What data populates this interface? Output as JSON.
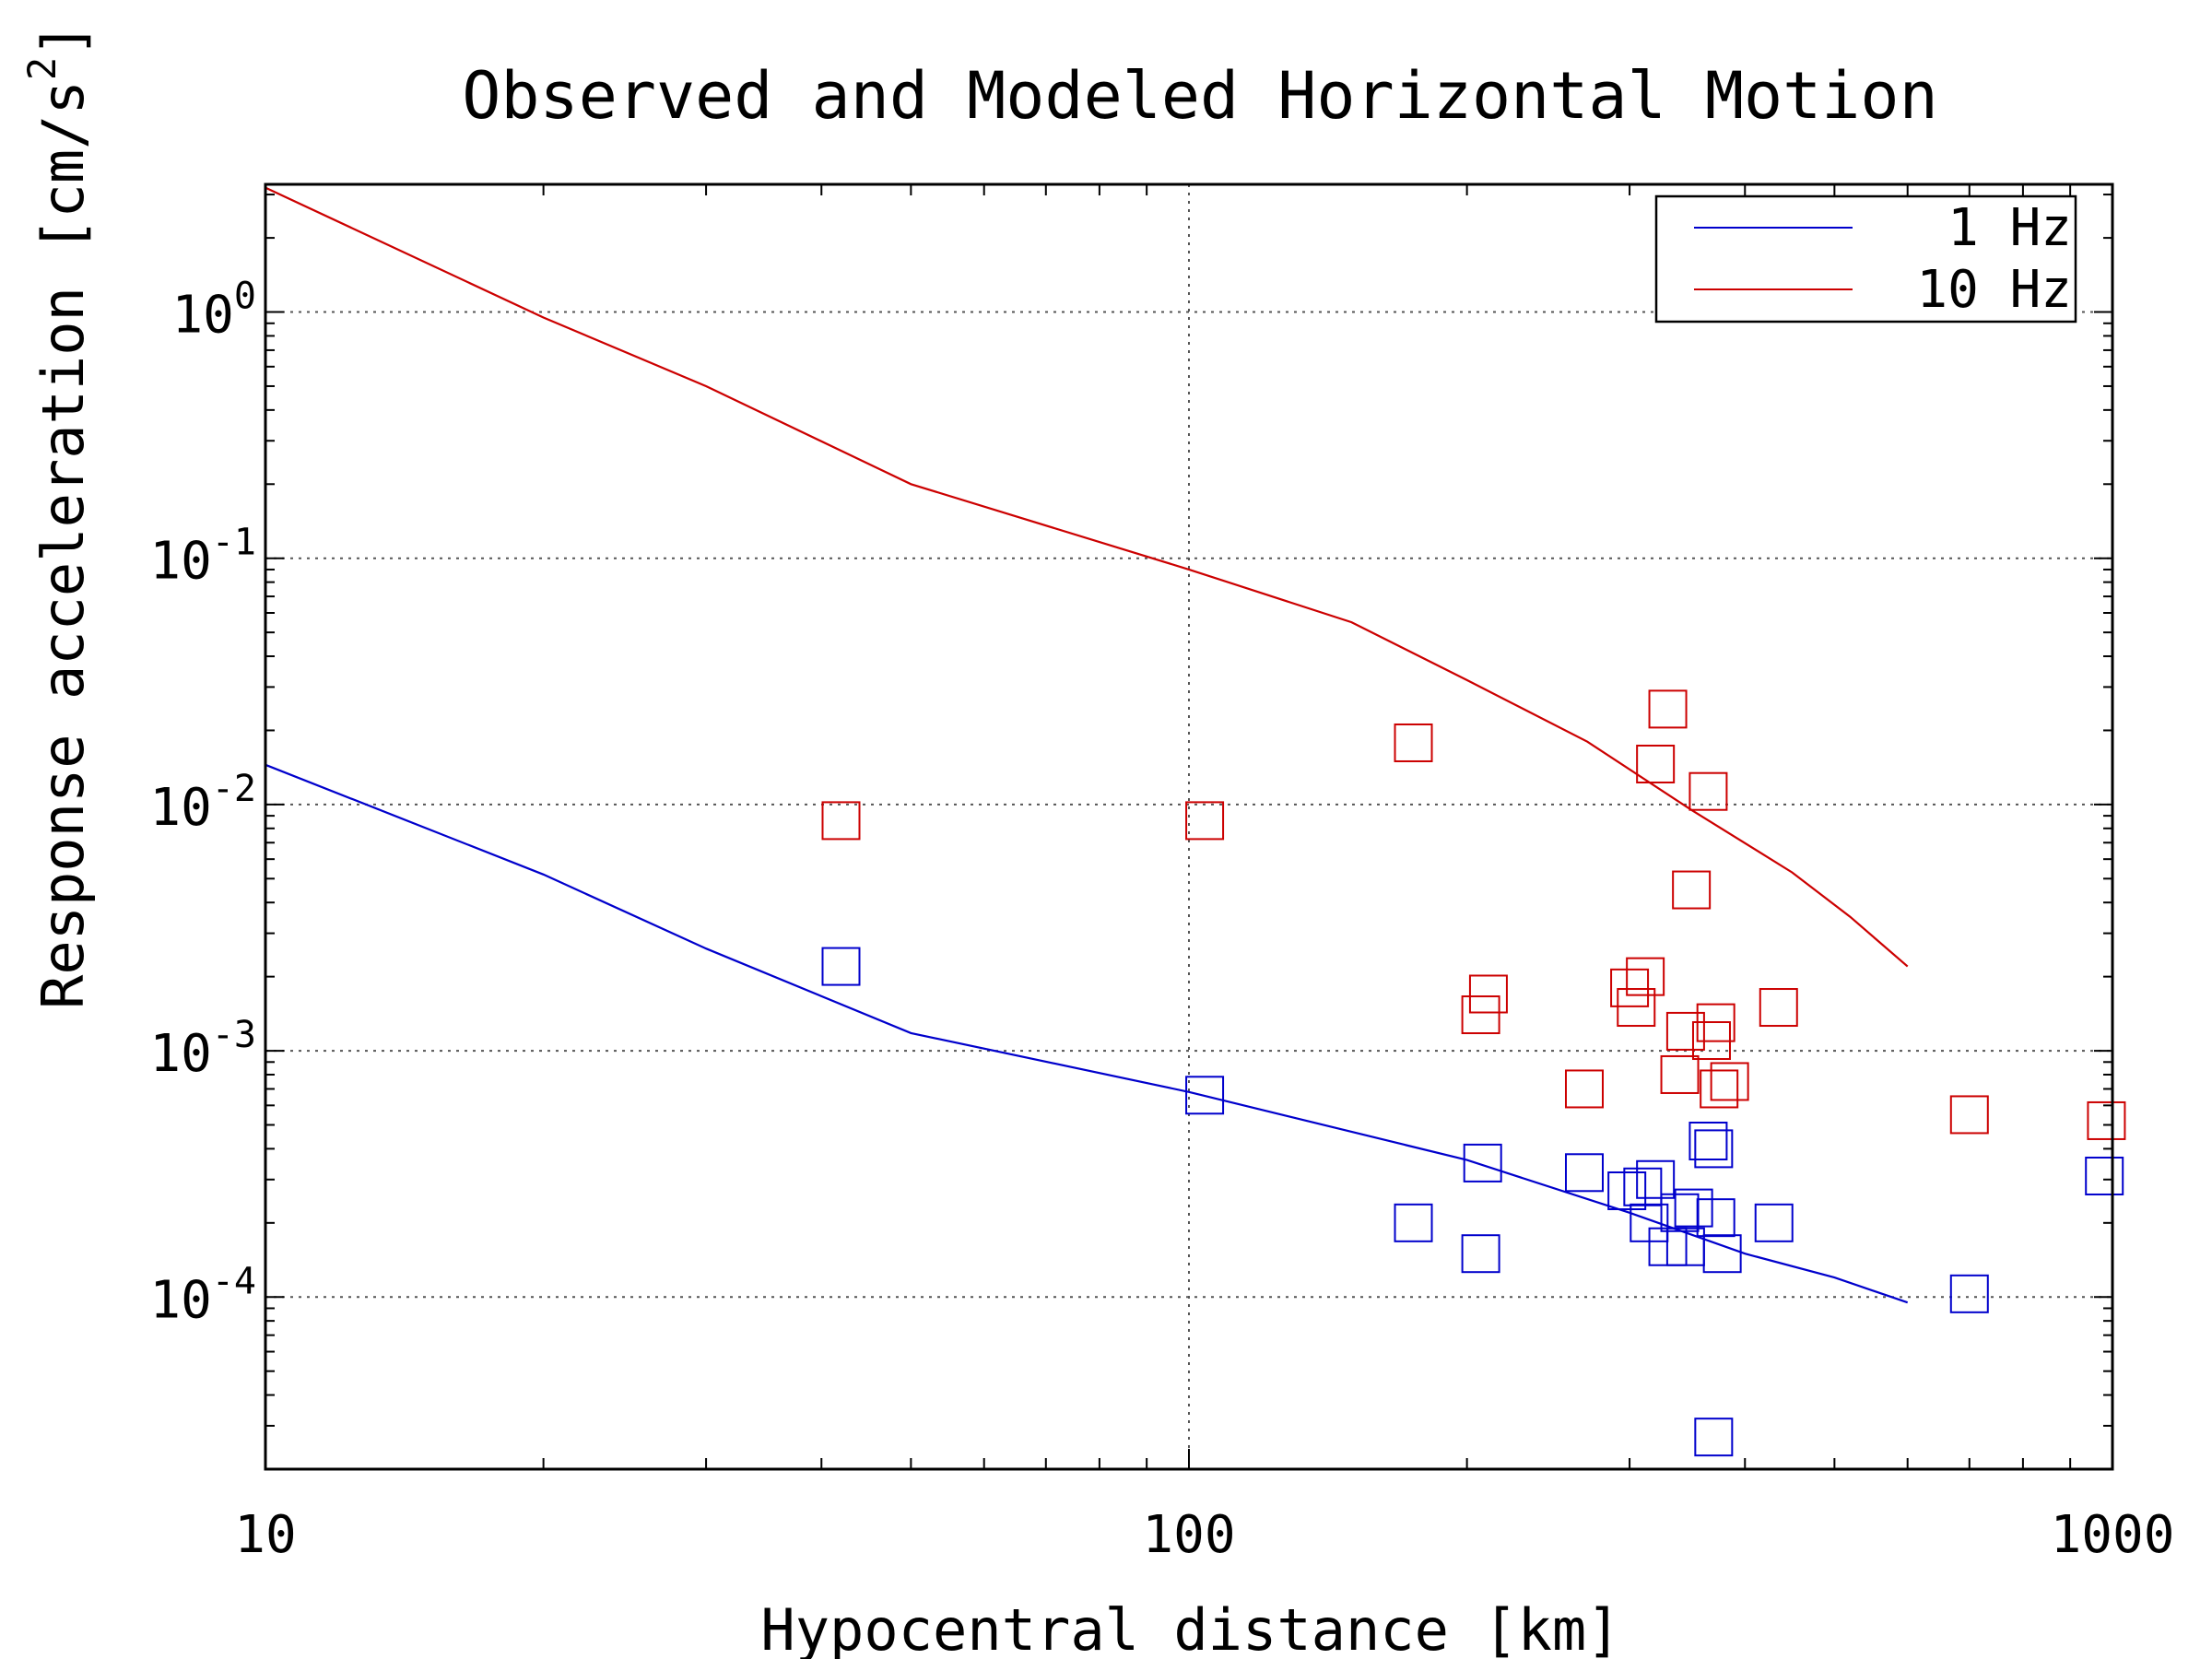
{
  "chart_data": {
    "type": "scatter",
    "title": "Observed and Modeled Horizontal Motion",
    "xlabel": "Hypocentral distance [km]",
    "ylabel_main": "Response acceleration [cm/s",
    "ylabel_sup": "2",
    "ylabel_tail": "]",
    "x_scale": "log",
    "y_scale": "log",
    "xlim": [
      10,
      1000
    ],
    "ylim": [
      2e-05,
      3.3
    ],
    "grid": true,
    "legend_position": "top-right",
    "x_ticks": [
      {
        "value": 10,
        "label": "10"
      },
      {
        "value": 100,
        "label": "100"
      },
      {
        "value": 1000,
        "label": "1000"
      }
    ],
    "y_ticks": [
      {
        "value": 1,
        "base": "10",
        "exp": "0"
      },
      {
        "value": 0.1,
        "base": "10",
        "exp": "-1"
      },
      {
        "value": 0.01,
        "base": "10",
        "exp": "-2"
      },
      {
        "value": 0.001,
        "base": "10",
        "exp": "-3"
      },
      {
        "value": 0.0001,
        "base": "10",
        "exp": "-4"
      }
    ],
    "series": [
      {
        "name": "1 Hz",
        "color": "#0000cc",
        "model": [
          [
            10,
            0.0145
          ],
          [
            20,
            0.0052
          ],
          [
            30,
            0.0026
          ],
          [
            50,
            0.00118
          ],
          [
            100,
            0.00068
          ],
          [
            200,
            0.00036
          ],
          [
            300,
            0.00022
          ],
          [
            400,
            0.00015
          ],
          [
            500,
            0.00012
          ],
          [
            600,
            9.5e-05
          ]
        ],
        "observed": [
          [
            42,
            0.0022
          ],
          [
            104,
            0.00066
          ],
          [
            175,
            0.0002
          ],
          [
            208,
            0.00035
          ],
          [
            207,
            0.00015
          ],
          [
            268,
            0.00032
          ],
          [
            298,
            0.00027
          ],
          [
            310,
            0.00028
          ],
          [
            315,
            0.0002
          ],
          [
            320,
            0.0003
          ],
          [
            330,
            0.00016
          ],
          [
            340,
            0.00022
          ],
          [
            345,
            0.00016
          ],
          [
            352,
            0.00023
          ],
          [
            365,
            0.00043
          ],
          [
            370,
            0.0004
          ],
          [
            372,
            0.00021
          ],
          [
            378,
            0.00015
          ],
          [
            430,
            0.0002
          ],
          [
            370,
            2.7e-05
          ],
          [
            700,
            0.000103
          ],
          [
            980,
            0.00031
          ]
        ]
      },
      {
        "name": "10 Hz",
        "color": "#cc0000",
        "model": [
          [
            10,
            3.2
          ],
          [
            20,
            0.95
          ],
          [
            30,
            0.5
          ],
          [
            50,
            0.2
          ],
          [
            100,
            0.09
          ],
          [
            150,
            0.055
          ],
          [
            200,
            0.032
          ],
          [
            270,
            0.018
          ],
          [
            350,
            0.0095
          ],
          [
            450,
            0.0053
          ],
          [
            520,
            0.0035
          ],
          [
            600,
            0.0022
          ]
        ],
        "observed": [
          [
            42,
            0.0086
          ],
          [
            104,
            0.0086
          ],
          [
            175,
            0.0178
          ],
          [
            207,
            0.0014
          ],
          [
            211,
            0.0017
          ],
          [
            268,
            0.0007
          ],
          [
            300,
            0.0018
          ],
          [
            305,
            0.0015
          ],
          [
            312,
            0.002
          ],
          [
            320,
            0.0146
          ],
          [
            330,
            0.0244
          ],
          [
            340,
            0.0008
          ],
          [
            345,
            0.0012
          ],
          [
            350,
            0.0045
          ],
          [
            365,
            0.0113
          ],
          [
            368,
            0.0011
          ],
          [
            372,
            0.0013
          ],
          [
            375,
            0.0007
          ],
          [
            385,
            0.00075
          ],
          [
            435,
            0.0015
          ],
          [
            700,
            0.00055
          ],
          [
            985,
            0.00052
          ]
        ]
      }
    ]
  }
}
